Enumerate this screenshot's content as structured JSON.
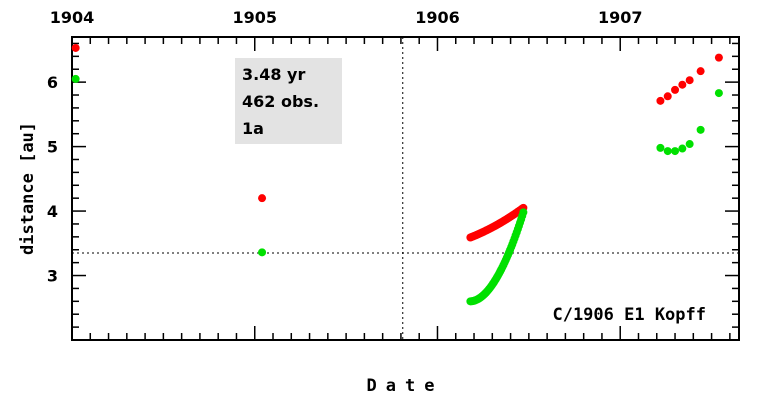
{
  "chart_data": {
    "type": "scatter",
    "title": "",
    "xlabel": "Date",
    "ylabel": "distance [au]",
    "x_top_ticks": [
      "1904",
      "1905",
      "1906",
      "1907"
    ],
    "x_tick_years": [
      1904,
      1905,
      1906,
      1907
    ],
    "xlim": [
      1904.0,
      1907.65
    ],
    "ylim": [
      2.0,
      6.7
    ],
    "y_ticks": [
      3,
      4,
      5,
      6
    ],
    "reference_lines": {
      "date": 1905.81,
      "distance": 3.35
    },
    "info_box": {
      "lines": [
        "3.48 yr",
        "462 obs.",
        "1a"
      ]
    },
    "object_label": "C/1906 E1 Kopff",
    "colors": {
      "series_red": "#ff0000",
      "series_green": "#00e000",
      "info_bg": "#e3e3e3"
    },
    "series": [
      {
        "color": "#ff0000",
        "points": [
          [
            1904.02,
            6.53
          ],
          [
            1905.04,
            4.2
          ],
          [
            1907.22,
            5.71
          ],
          [
            1907.26,
            5.78
          ],
          [
            1907.3,
            5.88
          ],
          [
            1907.34,
            5.96
          ],
          [
            1907.38,
            6.03
          ],
          [
            1907.44,
            6.17
          ],
          [
            1907.54,
            6.38
          ]
        ],
        "segment": {
          "x_start": 1906.18,
          "x_end": 1906.47,
          "y_start": 3.59,
          "y_end": 4.05
        }
      },
      {
        "color": "#00e000",
        "points": [
          [
            1904.02,
            6.05
          ],
          [
            1905.04,
            3.36
          ],
          [
            1907.22,
            4.98
          ],
          [
            1907.26,
            4.93
          ],
          [
            1907.3,
            4.93
          ],
          [
            1907.34,
            4.97
          ],
          [
            1907.38,
            5.04
          ],
          [
            1907.44,
            5.26
          ],
          [
            1907.54,
            5.83
          ]
        ],
        "segment": {
          "x_start": 1906.18,
          "x_end": 1906.47,
          "y_start": 2.6,
          "y_end": 3.98
        }
      }
    ]
  }
}
